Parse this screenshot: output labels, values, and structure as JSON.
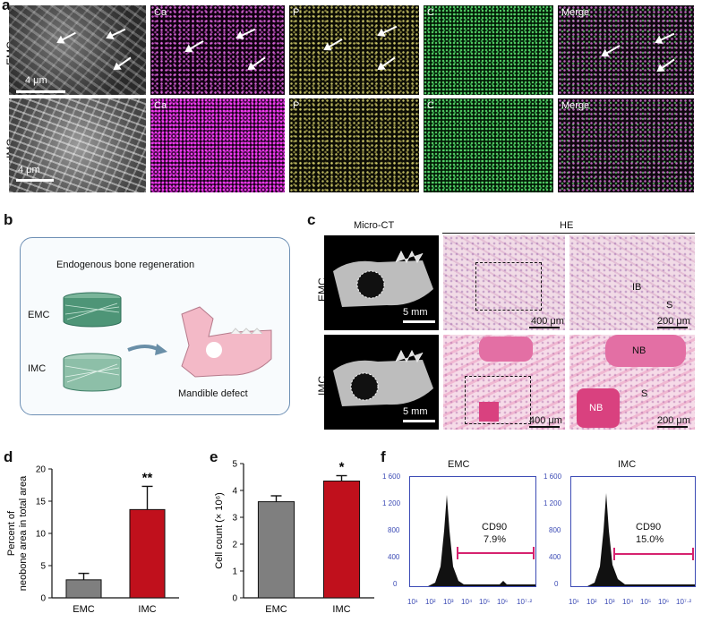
{
  "panel_a": {
    "label": "a",
    "rows": [
      {
        "name": "EMC",
        "scale": "4 μm"
      },
      {
        "name": "IMC",
        "scale": "4 μm"
      }
    ],
    "tile_labels": [
      "Ca",
      "P",
      "C",
      "Merge"
    ]
  },
  "panel_b": {
    "label": "b",
    "title": "Endogenous bone regeneration",
    "emc": "EMC",
    "imc": "IMC",
    "defect": "Mandible defect"
  },
  "panel_c": {
    "label": "c",
    "microct": "Micro-CT",
    "he": "HE",
    "rows": [
      "EMC",
      "IMC"
    ],
    "scale_5mm": "5 mm",
    "scale_400": "400 μm",
    "scale_200": "200 μm",
    "ib": "IB",
    "s": "S",
    "nb": "NB"
  },
  "panel_d": {
    "label": "d"
  },
  "panel_e": {
    "label": "e"
  },
  "panel_f": {
    "label": "f",
    "plots": [
      {
        "title": "EMC",
        "marker": "CD90",
        "pct": "7.9%"
      },
      {
        "title": "IMC",
        "marker": "CD90",
        "pct": "15.0%"
      }
    ],
    "yticks": [
      "1 600",
      "1 200",
      "800",
      "400",
      "0"
    ],
    "xticks": [
      "10¹",
      "10²",
      "10³",
      "10⁴",
      "10⁵",
      "10⁶",
      "10⁷·²"
    ],
    "gate_color": "#d6226f",
    "axis_color": "#3c4bb5"
  },
  "chart_data": [
    {
      "type": "bar",
      "categories": [
        "EMC",
        "IMC"
      ],
      "values": [
        2.8,
        13.7
      ],
      "errors": [
        1.0,
        3.6
      ],
      "significance": [
        "",
        "**"
      ],
      "ylabel": "Percent of\nneobone area in total area",
      "yticks": [
        0,
        5,
        10,
        15,
        20
      ],
      "ylim": [
        0,
        20
      ],
      "colors": [
        "#7f7f7f",
        "#c0101c"
      ]
    },
    {
      "type": "bar",
      "categories": [
        "EMC",
        "IMC"
      ],
      "values": [
        3.58,
        4.35
      ],
      "errors": [
        0.22,
        0.2
      ],
      "significance": [
        "",
        "*"
      ],
      "ylabel": "Cell count (× 10⁶)",
      "yticks": [
        0,
        1,
        2,
        3,
        4,
        5
      ],
      "ylim": [
        0,
        5
      ],
      "colors": [
        "#7f7f7f",
        "#c0101c"
      ]
    }
  ]
}
